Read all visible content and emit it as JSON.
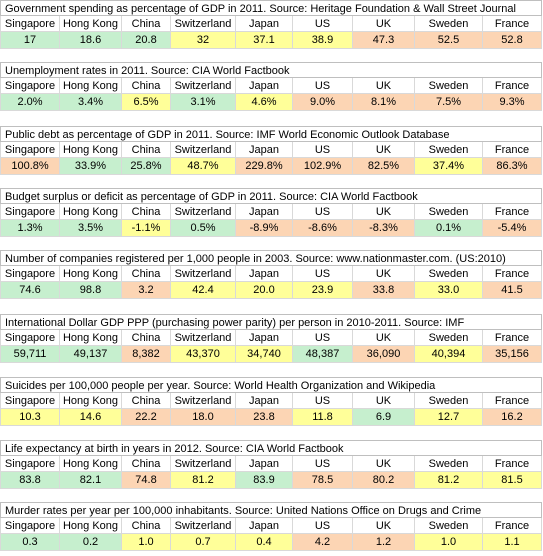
{
  "columns": [
    "Singapore",
    "Hong Kong",
    "China",
    "Switzerland",
    "Japan",
    "US",
    "UK",
    "Sweden",
    "France"
  ],
  "colors": {
    "green": "#c6efce",
    "yellow": "#ffff99",
    "orange": "#fcd5b4"
  },
  "tables": [
    {
      "title": "Government spending as percentage of GDP in 2011. Source: Heritage Foundation & Wall Street Journal",
      "values": [
        "17",
        "18.6",
        "20.8",
        "32",
        "37.1",
        "38.9",
        "47.3",
        "52.5",
        "52.8"
      ],
      "shades": [
        "g",
        "g",
        "g",
        "y",
        "y",
        "y",
        "o",
        "o",
        "o"
      ]
    },
    {
      "title": "Unemployment rates in 2011. Source: CIA World Factbook",
      "values": [
        "2.0%",
        "3.4%",
        "6.5%",
        "3.1%",
        "4.6%",
        "9.0%",
        "8.1%",
        "7.5%",
        "9.3%"
      ],
      "shades": [
        "g",
        "g",
        "y",
        "g",
        "y",
        "o",
        "o",
        "o",
        "o"
      ]
    },
    {
      "title": "Public debt as percentage of GDP in 2011. Source: IMF World Economic Outlook Database",
      "values": [
        "100.8%",
        "33.9%",
        "25.8%",
        "48.7%",
        "229.8%",
        "102.9%",
        "82.5%",
        "37.4%",
        "86.3%"
      ],
      "shades": [
        "o",
        "g",
        "g",
        "y",
        "o",
        "o",
        "o",
        "y",
        "o"
      ]
    },
    {
      "title": "Budget surplus or deficit as percentage of GDP in 2011. Source: CIA World Factbook",
      "values": [
        "1.3%",
        "3.5%",
        "-1.1%",
        "0.5%",
        "-8.9%",
        "-8.6%",
        "-8.3%",
        "0.1%",
        "-5.4%"
      ],
      "shades": [
        "g",
        "g",
        "y",
        "g",
        "o",
        "o",
        "o",
        "g",
        "o"
      ]
    },
    {
      "title": "Number of companies registered per 1,000 people in 2003. Source: www.nationmaster.com. (US:2010)",
      "values": [
        "74.6",
        "98.8",
        "3.2",
        "42.4",
        "20.0",
        "23.9",
        "33.8",
        "33.0",
        "41.5"
      ],
      "shades": [
        "g",
        "g",
        "o",
        "y",
        "y",
        "y",
        "o",
        "y",
        "o"
      ]
    },
    {
      "title": "International Dollar GDP PPP (purchasing power parity) per person in 2010-2011. Source: IMF",
      "values": [
        "59,711",
        "49,137",
        "8,382",
        "43,370",
        "34,740",
        "48,387",
        "36,090",
        "40,394",
        "35,156"
      ],
      "shades": [
        "g",
        "g",
        "o",
        "y",
        "y",
        "g",
        "o",
        "y",
        "o"
      ]
    },
    {
      "title": "Suicides per 100,000 people per year. Source: World Health Organization and Wikipedia",
      "values": [
        "10.3",
        "14.6",
        "22.2",
        "18.0",
        "23.8",
        "11.8",
        "6.9",
        "12.7",
        "16.2"
      ],
      "shades": [
        "y",
        "y",
        "o",
        "o",
        "o",
        "y",
        "g",
        "y",
        "o"
      ]
    },
    {
      "title": "Life expectancy at birth in years in 2012. Source: CIA World Factbook",
      "values": [
        "83.8",
        "82.1",
        "74.8",
        "81.2",
        "83.9",
        "78.5",
        "80.2",
        "81.2",
        "81.5"
      ],
      "shades": [
        "g",
        "g",
        "o",
        "y",
        "g",
        "o",
        "o",
        "y",
        "y"
      ]
    },
    {
      "title": "Murder rates per year per 100,000 inhabitants. Source: United Nations Office on Drugs and Crime",
      "values": [
        "0.3",
        "0.2",
        "1.0",
        "0.7",
        "0.4",
        "4.2",
        "1.2",
        "1.0",
        "1.1"
      ],
      "shades": [
        "g",
        "g",
        "y",
        "y",
        "y",
        "o",
        "o",
        "y",
        "y"
      ]
    }
  ]
}
